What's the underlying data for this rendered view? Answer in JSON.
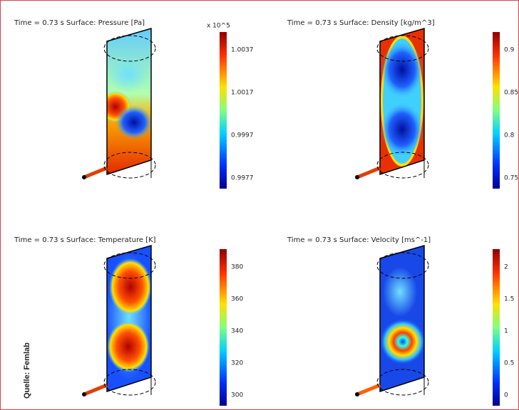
{
  "panels": [
    {
      "title": "Time = 0.73 s  Surface: Pressure [Pa]",
      "exponent": "x 10^5",
      "colorbar_ticks": [
        "1.0037",
        "1.0017",
        "0.9997",
        "0.9977"
      ]
    },
    {
      "title": "Time = 0.73 s  Surface: Density [kg/m^3]",
      "colorbar_ticks": [
        "0.9",
        "0.85",
        "0.8",
        "0.75"
      ]
    },
    {
      "title": "Time = 0.73 s  Surface: Temperature [K]",
      "colorbar_ticks": [
        "380",
        "360",
        "340",
        "320",
        "300"
      ]
    },
    {
      "title": "Time = 0.73 s  Surface: Velocity [ms^-1]",
      "colorbar_ticks": [
        "2",
        "1.5",
        "1",
        "0.5",
        "0"
      ]
    }
  ],
  "source": "Quelle: Femlab"
}
